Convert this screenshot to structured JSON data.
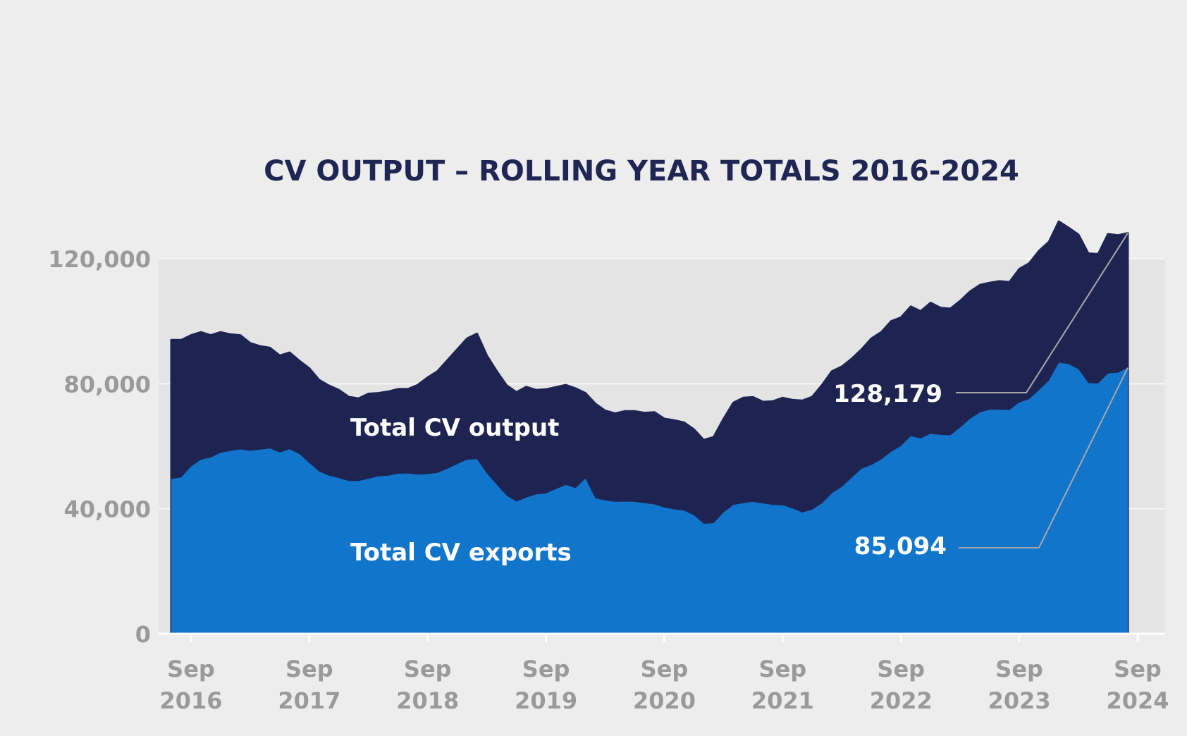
{
  "chart_data": {
    "type": "area",
    "title": "CV OUTPUT – ROLLING YEAR TOTALS 2016-2024",
    "xlabel": "",
    "ylabel": "",
    "ylim": [
      0,
      140000
    ],
    "yticks": [
      0,
      40000,
      80000,
      120000
    ],
    "ytick_labels": [
      "0",
      "40,000",
      "80,000",
      "120,000"
    ],
    "xtick_labels": [
      {
        "month": "Sep",
        "year": "2016"
      },
      {
        "month": "Sep",
        "year": "2017"
      },
      {
        "month": "Sep",
        "year": "2018"
      },
      {
        "month": "Sep",
        "year": "2019"
      },
      {
        "month": "Sep",
        "year": "2020"
      },
      {
        "month": "Sep",
        "year": "2021"
      },
      {
        "month": "Sep",
        "year": "2022"
      },
      {
        "month": "Sep",
        "year": "2023"
      },
      {
        "month": "Sep",
        "year": "2024"
      }
    ],
    "x_start": "Jul 2016",
    "x_end": "Aug 2024",
    "grid": true,
    "colors": {
      "output": "#1e2452",
      "exports": "#1275cc",
      "background": "#ededed",
      "plot_background": "#e4e4e4",
      "title": "#1f2654",
      "tick": "#9a9a9a",
      "grid": "#f7f7f7",
      "leader": "#a8a8a8"
    },
    "series": [
      {
        "name": "Total CV output",
        "values": [
          94000,
          94000,
          95500,
          96500,
          95500,
          96500,
          95800,
          95500,
          93000,
          92000,
          91500,
          89000,
          90000,
          87300,
          84900,
          81200,
          79400,
          78000,
          75800,
          75300,
          76800,
          77000,
          77500,
          78300,
          78300,
          79600,
          82000,
          84000,
          87500,
          91000,
          94500,
          96000,
          89000,
          84000,
          79500,
          77300,
          79000,
          78000,
          78200,
          78900,
          79600,
          78500,
          77000,
          73600,
          71400,
          70500,
          71200,
          71200,
          70700,
          70900,
          68800,
          68300,
          67600,
          65400,
          62000,
          62900,
          68700,
          73900,
          75500,
          75700,
          74200,
          74400,
          75500,
          74800,
          74600,
          75800,
          79600,
          84000,
          85500,
          88000,
          91000,
          94500,
          96500,
          100000,
          101200,
          104700,
          103200,
          105900,
          104300,
          104000,
          106500,
          109500,
          111600,
          112300,
          112800,
          112500,
          116700,
          118500,
          122500,
          125400,
          131900,
          129900,
          127700,
          121700,
          121500,
          127900,
          127500,
          128179
        ]
      },
      {
        "name": "Total CV exports",
        "values": [
          49500,
          50000,
          53500,
          55700,
          56400,
          57900,
          58500,
          59000,
          58500,
          58900,
          59300,
          58000,
          59000,
          57500,
          54600,
          51900,
          50600,
          49800,
          48900,
          48900,
          49600,
          50400,
          50600,
          51200,
          51300,
          50900,
          51100,
          51500,
          52800,
          54300,
          55700,
          55900,
          51300,
          47700,
          44200,
          42300,
          43600,
          44600,
          44900,
          46300,
          47600,
          46600,
          49700,
          43300,
          42700,
          42200,
          42300,
          42200,
          41800,
          41400,
          40400,
          39800,
          39400,
          37900,
          35200,
          35400,
          38800,
          41200,
          41800,
          42200,
          41700,
          41200,
          41100,
          40100,
          38800,
          39700,
          41800,
          45000,
          47000,
          49900,
          52800,
          54000,
          55800,
          58200,
          60100,
          63200,
          62500,
          64000,
          63600,
          63500,
          66000,
          68800,
          70800,
          71700,
          71700,
          71600,
          74000,
          75100,
          78000,
          81000,
          86700,
          86300,
          84600,
          80200,
          80100,
          83300,
          83500,
          85094
        ]
      }
    ],
    "area_labels": {
      "output": "Total CV output",
      "exports": "Total CV exports"
    },
    "end_value_labels": {
      "output": "128,179",
      "exports": "85,094"
    }
  }
}
